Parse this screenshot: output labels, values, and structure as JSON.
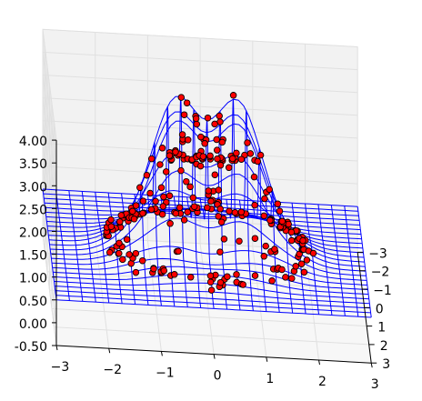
{
  "chart_data": {
    "type": "3d-wireframe-scatter",
    "title": "",
    "xlabel": "",
    "ylabel": "",
    "zlabel": "",
    "x_ticks": [
      "−3",
      "−2",
      "−1",
      "0",
      "1",
      "2",
      "3"
    ],
    "y_ticks": [
      "−3",
      "−2",
      "−1",
      "0",
      "1",
      "2",
      "3"
    ],
    "z_ticks": [
      "-0.50",
      "0.00",
      "0.50",
      "1.00",
      "1.50",
      "2.00",
      "2.50",
      "3.00",
      "3.50",
      "4.00"
    ],
    "xlim": [
      -3,
      3
    ],
    "ylim": [
      -3,
      3
    ],
    "zlim": [
      -0.5,
      4.0
    ],
    "grid": true,
    "surface": {
      "style": "wireframe",
      "color": "#0000ff",
      "x_range": [
        -3,
        3
      ],
      "y_range": [
        -3,
        3
      ],
      "peaks": [
        {
          "x": -0.6,
          "y": 0.0,
          "height": 3.75
        },
        {
          "x": 0.6,
          "y": 0.0,
          "height": 3.75
        }
      ],
      "base": 0.5
    },
    "scatter": {
      "color": "#ff0000",
      "edgecolor": "#000000",
      "description_points": [
        {
          "x": -1.5,
          "y": 0.8,
          "z": 1.6
        },
        {
          "x": 1.5,
          "y": 0.8,
          "z": 1.6
        },
        {
          "x": 0.0,
          "y": 2.0,
          "z": 0.5
        },
        {
          "x": 0.0,
          "y": -1.0,
          "z": 2.5
        }
      ]
    }
  }
}
